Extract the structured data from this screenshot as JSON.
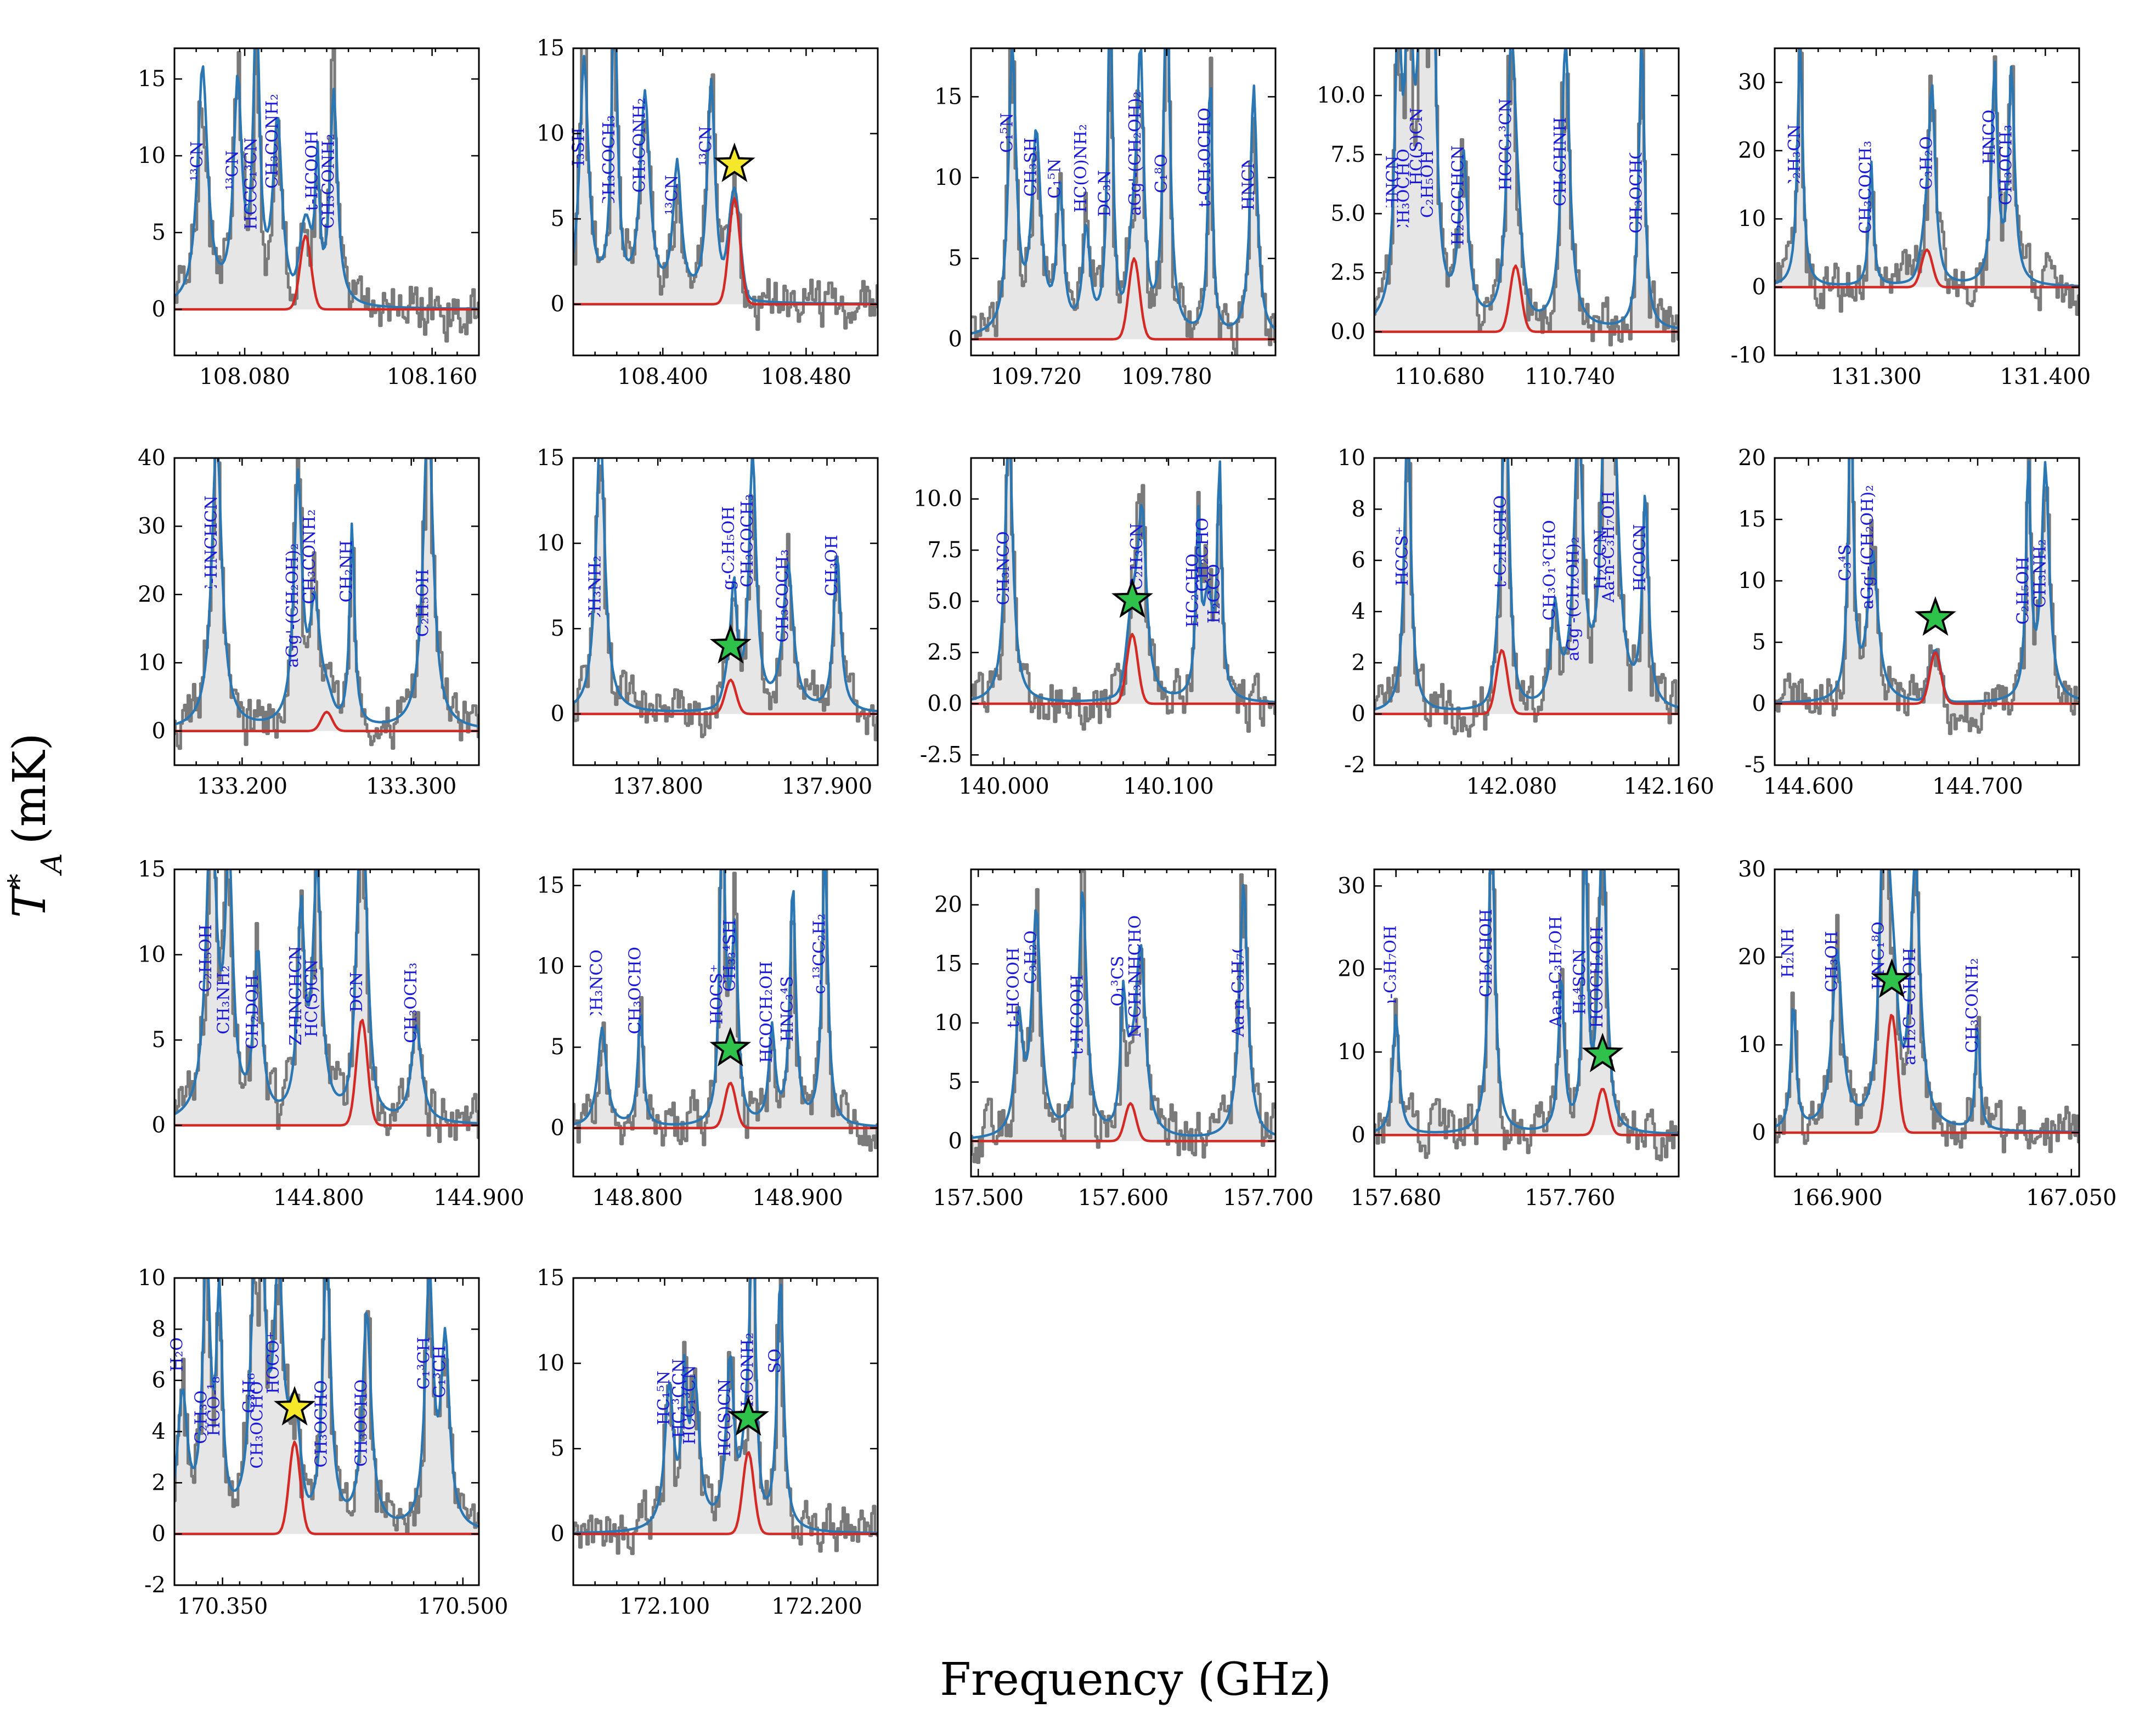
{
  "figure": {
    "ylabel_main": "T",
    "ylabel_sup": "*",
    "ylabel_sub": "A",
    "ylabel_unit": "(mK)",
    "xlabel": "Frequency (GHz)"
  },
  "colors": {
    "observed": "#7a7a7a",
    "observed_fill": "#e6e6e6",
    "total_model": "#2a77b4",
    "target_model": "#d42a26",
    "labels": "#1a1ad8",
    "star_yellow": "#f5e72a",
    "star_green": "#2fc24a"
  },
  "chart_data": [
    {
      "type": "line",
      "center": 108.106,
      "xlim": [
        108.05,
        108.18
      ],
      "ylim": [
        -3,
        17
      ],
      "xticks": [
        "108.080",
        "108.160"
      ],
      "xtick_values": [
        108.08,
        108.16
      ],
      "yticks": [
        0,
        5,
        10,
        15
      ],
      "peak": 4.8,
      "star": null,
      "labels": [
        {
          "text": "13CN",
          "x": 108.062
        },
        {
          "text": "13CN",
          "x": 108.077
        },
        {
          "text": "HCCC13CN",
          "x": 108.085
        },
        {
          "text": "CH3CONH2",
          "x": 108.094
        },
        {
          "text": "t-HCOOH",
          "x": 108.111
        },
        {
          "text": "CH3CONH2",
          "x": 108.118
        }
      ]
    },
    {
      "type": "line",
      "center": 108.44,
      "xlim": [
        108.35,
        108.52
      ],
      "ylim": [
        -3,
        15
      ],
      "xticks": [
        "108.400",
        "108.480"
      ],
      "xtick_values": [
        108.4,
        108.48
      ],
      "yticks": [
        0,
        5,
        10,
        15
      ],
      "peak": 6.2,
      "star": "yellow",
      "labels": [
        {
          "text": "CH3SH",
          "x": 108.356
        },
        {
          "text": "CH3COCH3",
          "x": 108.373
        },
        {
          "text": "CH3CONH2",
          "x": 108.39
        },
        {
          "text": "13CN",
          "x": 108.408
        },
        {
          "text": "13CN",
          "x": 108.427
        }
      ]
    },
    {
      "type": "line",
      "center": 109.765,
      "xlim": [
        109.69,
        109.83
      ],
      "ylim": [
        -1,
        18
      ],
      "xticks": [
        "109.720",
        "109.780"
      ],
      "xtick_values": [
        109.72,
        109.78
      ],
      "yticks": [
        0,
        5,
        10,
        15
      ],
      "peak": 5.0,
      "star": null,
      "labels": [
        {
          "text": "C15N",
          "x": 109.709
        },
        {
          "text": "CH3SH",
          "x": 109.72
        },
        {
          "text": "C15N",
          "x": 109.731
        },
        {
          "text": "HC(O)NH2",
          "x": 109.743
        },
        {
          "text": "DC3N",
          "x": 109.754
        },
        {
          "text": "aGg'-(CH2OH)2",
          "x": 109.768
        },
        {
          "text": "C18O",
          "x": 109.78
        },
        {
          "text": "t-CH3OCHO",
          "x": 109.8
        },
        {
          "text": "HNCN",
          "x": 109.82
        }
      ]
    },
    {
      "type": "line",
      "center": 110.715,
      "xlim": [
        110.65,
        110.79
      ],
      "ylim": [
        -1,
        12
      ],
      "xticks": [
        "110.680",
        "110.740"
      ],
      "xtick_values": [
        110.68,
        110.74
      ],
      "yticks": [
        0.0,
        2.5,
        5.0,
        7.5,
        10.0
      ],
      "peak": 2.8,
      "star": null,
      "labels": [
        {
          "text": "HNCN",
          "x": 110.661
        },
        {
          "text": "CH3OCHO",
          "x": 110.666
        },
        {
          "text": "HC(S)CN",
          "x": 110.672
        },
        {
          "text": "C2H5OH",
          "x": 110.677
        },
        {
          "text": "H2CCCHCN",
          "x": 110.691
        },
        {
          "text": "HCCC13CN",
          "x": 110.713
        },
        {
          "text": "CH3CHNH",
          "x": 110.738
        },
        {
          "text": "CH3OCHO",
          "x": 110.773
        }
      ]
    },
    {
      "type": "line",
      "center": 131.33,
      "xlim": [
        131.24,
        131.42
      ],
      "ylim": [
        -10,
        35
      ],
      "xticks": [
        "131.300",
        "131.400"
      ],
      "xtick_values": [
        131.3,
        131.4
      ],
      "yticks": [
        -10,
        0,
        10,
        20,
        30
      ],
      "peak": 5.5,
      "star": null,
      "labels": [
        {
          "text": "C2H3CN",
          "x": 131.255
        },
        {
          "text": "CH3COCH3",
          "x": 131.297
        },
        {
          "text": "C3H2O",
          "x": 131.333
        },
        {
          "text": "HNCO",
          "x": 131.37
        },
        {
          "text": "CH3OCH3",
          "x": 131.38
        }
      ]
    },
    {
      "type": "line",
      "center": 133.25,
      "xlim": [
        133.16,
        133.34
      ],
      "ylim": [
        -5,
        40
      ],
      "xticks": [
        "133.200",
        "133.300"
      ],
      "xtick_values": [
        133.2,
        133.3
      ],
      "yticks": [
        0,
        10,
        20,
        30,
        40
      ],
      "peak": 2.8,
      "star": null,
      "labels": [
        {
          "text": "E-HNCHCN",
          "x": 133.185
        },
        {
          "text": "aGg'-(CH2OH)2",
          "x": 133.233
        },
        {
          "text": "CH3CONH2",
          "x": 133.243
        },
        {
          "text": "CH2NH",
          "x": 133.265
        },
        {
          "text": "C2H5OH",
          "x": 133.31
        }
      ]
    },
    {
      "type": "line",
      "center": 137.843,
      "xlim": [
        137.75,
        137.93
      ],
      "ylim": [
        -3,
        15
      ],
      "xticks": [
        "137.800",
        "137.900"
      ],
      "xtick_values": [
        137.8,
        137.9
      ],
      "yticks": [
        0,
        5,
        10,
        15
      ],
      "peak": 2.0,
      "star": "green",
      "labels": [
        {
          "text": "CH3NH2",
          "x": 137.766
        },
        {
          "text": "g-C2H5OH",
          "x": 137.845
        },
        {
          "text": "CH3COCH3",
          "x": 137.856
        },
        {
          "text": "CH3COCH3",
          "x": 137.877
        },
        {
          "text": "CH3OH",
          "x": 137.906
        }
      ]
    },
    {
      "type": "line",
      "center": 140.078,
      "xlim": [
        139.98,
        140.165
      ],
      "ylim": [
        -3,
        12
      ],
      "xticks": [
        "140.000",
        "140.100"
      ],
      "xtick_values": [
        140.0,
        140.1
      ],
      "yticks": [
        -2.5,
        0.0,
        2.5,
        5.0,
        7.5,
        10.0
      ],
      "peak": 3.4,
      "star": "green",
      "labels": [
        {
          "text": "CH3NCO",
          "x": 140.003
        },
        {
          "text": "C2H3CN",
          "x": 140.084
        },
        {
          "text": "HC2CHO",
          "x": 140.118
        },
        {
          "text": "CH2CHO",
          "x": 140.124
        },
        {
          "text": "H2CCO",
          "x": 140.131
        }
      ]
    },
    {
      "type": "line",
      "center": 142.075,
      "xlim": [
        142.01,
        142.165
      ],
      "ylim": [
        -2,
        10
      ],
      "xticks": [
        "142.080",
        "142.160"
      ],
      "xtick_values": [
        142.08,
        142.16
      ],
      "yticks": [
        -2,
        0,
        2,
        4,
        6,
        8,
        10
      ],
      "peak": 2.5,
      "star": null,
      "labels": [
        {
          "text": "HCCS+",
          "x": 142.027
        },
        {
          "text": "t-C2H3CHO",
          "x": 142.077
        },
        {
          "text": "CH3O13CHO",
          "x": 142.102
        },
        {
          "text": "aGg'-(CH2OH)2",
          "x": 142.114
        },
        {
          "text": "H2CCN",
          "x": 142.128
        },
        {
          "text": "Aa-n-C3H7OH",
          "x": 142.132
        },
        {
          "text": "HCOCN",
          "x": 142.148
        }
      ]
    },
    {
      "type": "line",
      "center": 144.675,
      "xlim": [
        144.58,
        144.76
      ],
      "ylim": [
        -5,
        20
      ],
      "xticks": [
        "144.600",
        "144.700"
      ],
      "xtick_values": [
        144.6,
        144.7
      ],
      "yticks": [
        -5,
        0,
        5,
        10,
        15,
        20
      ],
      "peak": 4.2,
      "star": "green",
      "labels": [
        {
          "text": "C34S",
          "x": 144.625
        },
        {
          "text": "aGg'-(CH2OH)2",
          "x": 144.638
        },
        {
          "text": "C2H5OH",
          "x": 144.73
        },
        {
          "text": "CH3NH2",
          "x": 144.74
        }
      ]
    },
    {
      "type": "line",
      "center": 144.827,
      "xlim": [
        144.71,
        144.9
      ],
      "ylim": [
        -3,
        15
      ],
      "xticks": [
        "144.800",
        "144.900"
      ],
      "xtick_values": [
        144.8,
        144.9
      ],
      "yticks": [
        0,
        5,
        10,
        15
      ],
      "peak": 6.2,
      "star": null,
      "labels": [
        {
          "text": "C2H5OH",
          "x": 144.733
        },
        {
          "text": "CH3NH2",
          "x": 144.744
        },
        {
          "text": "CH2DOH",
          "x": 144.762
        },
        {
          "text": "Z-HNCHCN",
          "x": 144.789
        },
        {
          "text": "HC(S)CN",
          "x": 144.799
        },
        {
          "text": "DCN",
          "x": 144.827
        },
        {
          "text": "CH3OCH3",
          "x": 144.861
        }
      ]
    },
    {
      "type": "line",
      "center": 148.858,
      "xlim": [
        148.76,
        148.95
      ],
      "ylim": [
        -3,
        16
      ],
      "xticks": [
        "148.800",
        "148.900"
      ],
      "xtick_values": [
        148.8,
        148.9
      ],
      "yticks": [
        0,
        5,
        10,
        15
      ],
      "peak": 2.8,
      "star": "green",
      "labels": [
        {
          "text": "CH3NCO",
          "x": 148.778
        },
        {
          "text": "CH3OCHO",
          "x": 148.802
        },
        {
          "text": "HOCS+",
          "x": 148.853
        },
        {
          "text": "CH334SH",
          "x": 148.861
        },
        {
          "text": "HCOCH2OH",
          "x": 148.884
        },
        {
          "text": "HNC34S",
          "x": 148.897
        },
        {
          "text": "c-13CC2H2",
          "x": 148.917
        }
      ]
    },
    {
      "type": "line",
      "center": 157.605,
      "xlim": [
        157.495,
        157.705
      ],
      "ylim": [
        -3,
        23
      ],
      "xticks": [
        "157.500",
        "157.600",
        "157.700"
      ],
      "xtick_values": [
        157.5,
        157.6,
        157.7
      ],
      "yticks": [
        0,
        5,
        10,
        15,
        20
      ],
      "peak": 3.2,
      "star": null,
      "labels": [
        {
          "text": "t-HCOOH",
          "x": 157.528
        },
        {
          "text": "C3H2O",
          "x": 157.54
        },
        {
          "text": "t-HCOOH",
          "x": 157.572
        },
        {
          "text": "O13CS",
          "x": 157.6
        },
        {
          "text": "N-CH3NHCHO",
          "x": 157.612
        },
        {
          "text": "Aa-n-C3H7OH",
          "x": 157.683
        }
      ]
    },
    {
      "type": "line",
      "center": 157.775,
      "xlim": [
        157.67,
        157.81
      ],
      "ylim": [
        -5,
        32
      ],
      "xticks": [
        "157.680",
        "157.760"
      ],
      "xtick_values": [
        157.68,
        157.76
      ],
      "yticks": [
        0,
        10,
        20,
        30
      ],
      "peak": 5.6,
      "star": "green",
      "labels": [
        {
          "text": "Aa-n-C3H7OH",
          "x": 157.68
        },
        {
          "text": "CH2CHOH",
          "x": 157.724
        },
        {
          "text": "Aa-n-C3H7OH",
          "x": 157.756
        },
        {
          "text": "H34SCN",
          "x": 157.767
        },
        {
          "text": "HCOCH2OH",
          "x": 157.775
        }
      ]
    },
    {
      "type": "line",
      "center": 166.935,
      "xlim": [
        166.86,
        167.055
      ],
      "ylim": [
        -5,
        30
      ],
      "xticks": [
        "166.900",
        "167.050"
      ],
      "xtick_values": [
        166.9,
        167.05
      ],
      "yticks": [
        0,
        10,
        20,
        30
      ],
      "peak": 13.5,
      "star": "green",
      "labels": [
        {
          "text": "CH2NH",
          "x": 166.872
        },
        {
          "text": "CH3OH",
          "x": 166.9
        },
        {
          "text": "HNC18O",
          "x": 166.93
        },
        {
          "text": "a-H2C=CHOH",
          "x": 166.95
        },
        {
          "text": "CH3CONH2",
          "x": 166.99
        }
      ]
    },
    {
      "type": "line",
      "center": 170.395,
      "xlim": [
        170.32,
        170.51
      ],
      "ylim": [
        -2,
        10
      ],
      "xticks": [
        "170.350",
        "170.500"
      ],
      "xtick_values": [
        170.35,
        170.5
      ],
      "yticks": [
        -2,
        0,
        2,
        4,
        6,
        8,
        10
      ],
      "peak": 3.6,
      "star": "yellow",
      "labels": [
        {
          "text": "C3H2O",
          "x": 170.325
        },
        {
          "text": "C2H3O",
          "x": 170.34
        },
        {
          "text": "HCO-18",
          "x": 170.348
        },
        {
          "text": "C3H6",
          "x": 170.37
        },
        {
          "text": "CH3OCHO",
          "x": 170.375
        },
        {
          "text": "HOCO+",
          "x": 170.385
        },
        {
          "text": "CH3OCHO",
          "x": 170.415
        },
        {
          "text": "CH3OCHO",
          "x": 170.44
        },
        {
          "text": "C13CH",
          "x": 170.479
        },
        {
          "text": "C13CH",
          "x": 170.489
        }
      ]
    },
    {
      "type": "line",
      "center": 172.155,
      "xlim": [
        172.04,
        172.24
      ],
      "ylim": [
        -3,
        15
      ],
      "xticks": [
        "172.100",
        "172.200"
      ],
      "xtick_values": [
        172.1,
        172.2
      ],
      "yticks": [
        0,
        5,
        10,
        15
      ],
      "peak": 4.8,
      "star": "green",
      "labels": [
        {
          "text": "HC15N",
          "x": 172.103
        },
        {
          "text": "HC13CCN",
          "x": 172.113
        },
        {
          "text": "HCC13CN",
          "x": 172.12
        },
        {
          "text": "HC(S)CN",
          "x": 172.143
        },
        {
          "text": "CH3CONH2",
          "x": 172.158
        },
        {
          "text": "SO",
          "x": 172.176
        }
      ]
    }
  ]
}
